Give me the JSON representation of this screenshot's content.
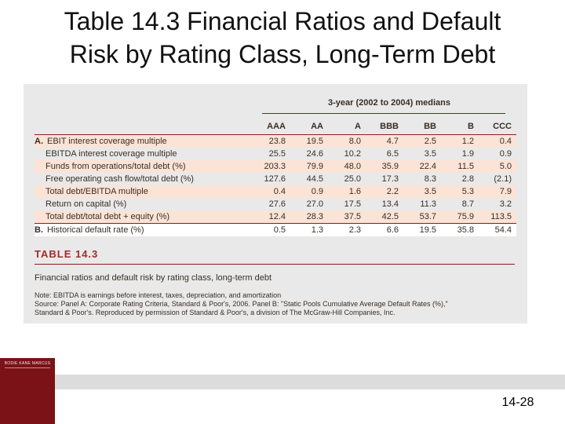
{
  "title": {
    "line1": "Table 14.3 Financial Ratios and Default",
    "line2": "Risk by Rating Class, Long-Term Debt"
  },
  "table": {
    "median_header": "3-year (2002 to 2004) medians",
    "columns": [
      "AAA",
      "AA",
      "A",
      "BBB",
      "BB",
      "B",
      "CCC"
    ],
    "rows": [
      {
        "section": "A.",
        "label": "EBIT interest coverage multiple",
        "values": [
          "23.8",
          "19.5",
          "8.0",
          "4.7",
          "2.5",
          "1.2",
          "0.4"
        ]
      },
      {
        "section": "",
        "label": "EBITDA interest coverage multiple",
        "values": [
          "25.5",
          "24.6",
          "10.2",
          "6.5",
          "3.5",
          "1.9",
          "0.9"
        ]
      },
      {
        "section": "",
        "label": "Funds from operations/total debt (%)",
        "values": [
          "203.3",
          "79.9",
          "48.0",
          "35.9",
          "22.4",
          "11.5",
          "5.0"
        ]
      },
      {
        "section": "",
        "label": "Free operating cash flow/total debt (%)",
        "values": [
          "127.6",
          "44.5",
          "25.0",
          "17.3",
          "8.3",
          "2.8",
          "(2.1)"
        ]
      },
      {
        "section": "",
        "label": "Total debt/EBITDA multiple",
        "values": [
          "0.4",
          "0.9",
          "1.6",
          "2.2",
          "3.5",
          "5.3",
          "7.9"
        ]
      },
      {
        "section": "",
        "label": "Return on capital (%)",
        "values": [
          "27.6",
          "27.0",
          "17.5",
          "13.4",
          "11.3",
          "8.7",
          "3.2"
        ]
      },
      {
        "section": "",
        "label": "Total debt/total debt + equity (%)",
        "values": [
          "12.4",
          "28.3",
          "37.5",
          "42.5",
          "53.7",
          "75.9",
          "113.5"
        ]
      }
    ],
    "row_b": {
      "section": "B.",
      "label": "Historical default rate (%)",
      "values": [
        "0.5",
        "1.3",
        "2.3",
        "6.6",
        "19.5",
        "35.8",
        "54.4"
      ]
    },
    "table_label": "TABLE 14.3",
    "caption": "Financial ratios and default risk by rating class, long-term debt",
    "note": "Note: EBITDA is earnings before interest, taxes, depreciation, and amortization",
    "source_line1": "Source: Panel A: Corporate Rating Criteria, Standard & Poor's, 2006. Panel B: \"Static Pools Cumulative Average Default Rates (%),\"",
    "source_line2": "Standard & Poor's. Reproduced by permission of Standard & Poor's, a division of The McGraw-Hill Companies, Inc."
  },
  "footer": {
    "logo_text": "BODIE  KANE  MARCUS",
    "page_number": "14-28"
  },
  "colors": {
    "accent": "#8b1c24",
    "row_shade": "#fbe3d6",
    "logo_bg": "#7a1218",
    "footer_bar": "#dcdcdc"
  }
}
